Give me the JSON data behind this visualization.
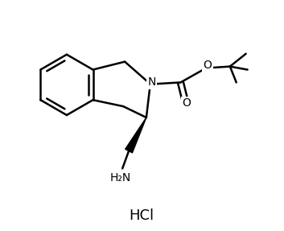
{
  "bg_color": "#ffffff",
  "line_color": "#000000",
  "line_width": 1.8,
  "figsize": [
    3.53,
    2.87
  ],
  "dpi": 100,
  "hcl_text": "HCl",
  "h2n_text": "H₂N",
  "n_text": "N",
  "o_text1": "O",
  "o_text2": "O"
}
